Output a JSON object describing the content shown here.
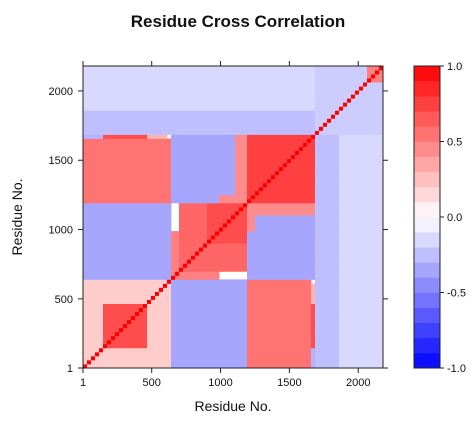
{
  "chart_data": {
    "type": "heatmap",
    "title": "Residue Cross Correlation",
    "xlabel": "Residue No.",
    "ylabel": "Residue No.",
    "xlim": [
      1,
      2180
    ],
    "ylim": [
      1,
      2180
    ],
    "x_ticks": [
      {
        "value": 1,
        "label": "1"
      },
      {
        "value": 500,
        "label": "500"
      },
      {
        "value": 1000,
        "label": "1000"
      },
      {
        "value": 1500,
        "label": "1500"
      },
      {
        "value": 2000,
        "label": "2000"
      }
    ],
    "y_ticks": [
      {
        "value": 1,
        "label": "1"
      },
      {
        "value": 500,
        "label": "500"
      },
      {
        "value": 1000,
        "label": "1000"
      },
      {
        "value": 1500,
        "label": "1500"
      },
      {
        "value": 2000,
        "label": "2000"
      }
    ],
    "colorbar": {
      "range": [
        -1.0,
        1.0
      ],
      "ticks": [
        {
          "value": 1.0,
          "label": "1.0"
        },
        {
          "value": 0.5,
          "label": "0.5"
        },
        {
          "value": 0.0,
          "label": "0.0"
        },
        {
          "value": -0.5,
          "label": "-0.5"
        },
        {
          "value": -1.0,
          "label": "-1.0"
        }
      ],
      "levels": [
        -1.0,
        -0.9,
        -0.8,
        -0.7,
        -0.6,
        -0.5,
        -0.4,
        -0.3,
        -0.2,
        -0.1,
        0.0,
        0.1,
        0.2,
        0.3,
        0.4,
        0.5,
        0.6,
        0.7,
        0.8,
        0.9,
        1.0
      ],
      "low_color": "#0000ff",
      "mid_color": "#ffffff",
      "high_color": "#ff0000"
    },
    "grid": false,
    "legend": "right",
    "symmetric": true,
    "diagonal_value": 1.0,
    "regions": [
      {
        "x": [
          1,
          160
        ],
        "y": [
          1,
          160
        ],
        "value": 0.75
      },
      {
        "x": [
          1,
          640
        ],
        "y": [
          1,
          640
        ],
        "value": 0.2
      },
      {
        "x": [
          160,
          480
        ],
        "y": [
          160,
          480
        ],
        "value": 0.7
      },
      {
        "x": [
          160,
          480
        ],
        "y": [
          1200,
          1700
        ],
        "value": 0.7
      },
      {
        "x": [
          480,
          620
        ],
        "y": [
          1200,
          1700
        ],
        "value": 0.3
      },
      {
        "x": [
          1,
          160
        ],
        "y": [
          1200,
          1700
        ],
        "value": -0.3
      },
      {
        "x": [
          1,
          480
        ],
        "y": [
          640,
          1200
        ],
        "value": -0.3
      },
      {
        "x": [
          640,
          1200
        ],
        "y": [
          1,
          640
        ],
        "value": -0.35
      },
      {
        "x": [
          1200,
          1650
        ],
        "y": [
          1,
          640
        ],
        "value": 0.55
      },
      {
        "x": [
          640,
          1000
        ],
        "y": [
          640,
          1000
        ],
        "value": 0.5
      },
      {
        "x": [
          700,
          1400
        ],
        "y": [
          700,
          1400
        ],
        "value": 0.6
      },
      {
        "x": [
          900,
          1200
        ],
        "y": [
          900,
          1200
        ],
        "value": 0.7
      },
      {
        "x": [
          1200,
          1700
        ],
        "y": [
          1200,
          1700
        ],
        "value": 0.75
      },
      {
        "x": [
          1000,
          1200
        ],
        "y": [
          1200,
          1700
        ],
        "value": 0.45
      },
      {
        "x": [
          640,
          1000
        ],
        "y": [
          1200,
          1700
        ],
        "value": -0.35
      },
      {
        "x": [
          1250,
          1700
        ],
        "y": [
          640,
          1100
        ],
        "value": -0.35
      },
      {
        "x": [
          1700,
          1950
        ],
        "y": [
          1,
          1700
        ],
        "value": -0.25
      },
      {
        "x": [
          1950,
          2180
        ],
        "y": [
          1,
          1700
        ],
        "value": -0.2
      },
      {
        "x": [
          1700,
          2180
        ],
        "y": [
          1700,
          2180
        ],
        "value": -0.2
      },
      {
        "x": [
          1,
          1700
        ],
        "y": [
          1850,
          2180
        ],
        "value": -0.15
      },
      {
        "x": [
          2050,
          2180
        ],
        "y": [
          2050,
          2180
        ],
        "value": 0.5
      }
    ]
  }
}
